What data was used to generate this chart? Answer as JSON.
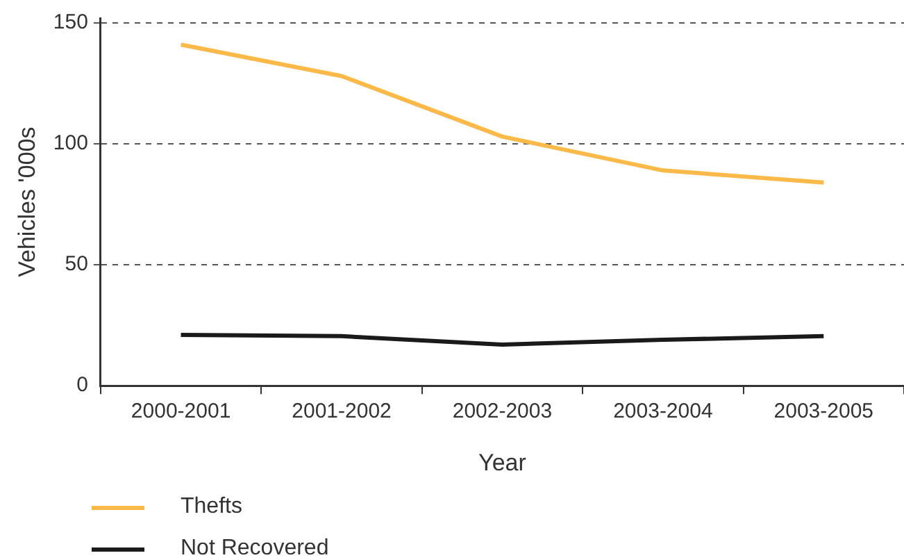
{
  "chart_data": {
    "type": "line",
    "xlabel": "Year",
    "ylabel": "Vehicles '000s",
    "categories": [
      "2000-2001",
      "2001-2002",
      "2002-2003",
      "2003-2004",
      "2003-2005"
    ],
    "series": [
      {
        "name": "Thefts",
        "color": "#fbb94a",
        "values": [
          141,
          128,
          103,
          89,
          84
        ]
      },
      {
        "name": "Not Recovered",
        "color": "#1a1a1a",
        "values": [
          21,
          20.5,
          17,
          19,
          20.5
        ]
      }
    ],
    "ylim": [
      0,
      152
    ],
    "yticks": [
      0,
      50,
      100,
      150
    ],
    "grid": "y",
    "legend": "bottom",
    "marker": "none",
    "line_style": "solid"
  }
}
